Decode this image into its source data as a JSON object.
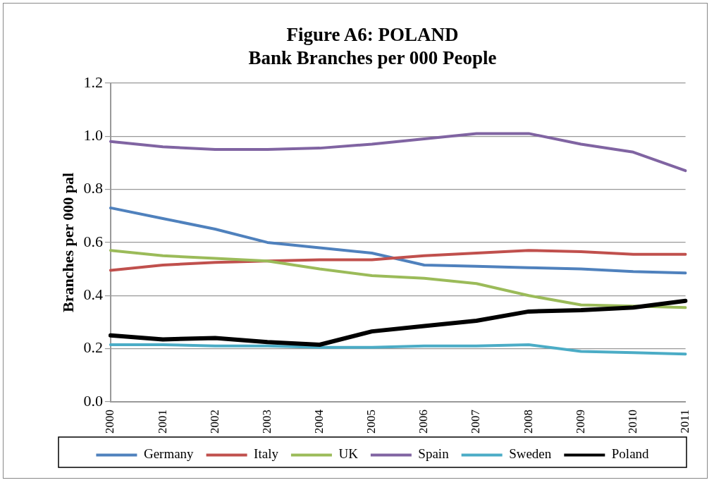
{
  "chart_data": {
    "type": "line",
    "title": "Figure A6: POLAND\nBank Branches per 000 People",
    "ylabel": "Branches per 000 pal",
    "categories": [
      "2000",
      "2001",
      "2002",
      "2003",
      "2004",
      "2005",
      "2006",
      "2007",
      "2008",
      "2009",
      "2010",
      "2011"
    ],
    "series": [
      {
        "name": "Germany",
        "color": "#4f81bd",
        "values": [
          0.73,
          0.69,
          0.65,
          0.6,
          0.58,
          0.56,
          0.515,
          0.51,
          0.505,
          0.5,
          0.49,
          0.485
        ]
      },
      {
        "name": "Italy",
        "color": "#c0504d",
        "values": [
          0.495,
          0.515,
          0.525,
          0.53,
          0.535,
          0.535,
          0.55,
          0.56,
          0.57,
          0.565,
          0.555,
          0.555
        ]
      },
      {
        "name": "UK",
        "color": "#9bbb59",
        "values": [
          0.57,
          0.55,
          0.54,
          0.53,
          0.5,
          0.475,
          0.465,
          0.445,
          0.4,
          0.365,
          0.36,
          0.355
        ]
      },
      {
        "name": "Spain",
        "color": "#8064a2",
        "values": [
          0.98,
          0.96,
          0.95,
          0.95,
          0.955,
          0.97,
          0.99,
          1.01,
          1.01,
          0.97,
          0.94,
          0.87
        ]
      },
      {
        "name": "Sweden",
        "color": "#4bacc6",
        "values": [
          0.215,
          0.215,
          0.21,
          0.21,
          0.205,
          0.205,
          0.21,
          0.21,
          0.215,
          0.19,
          0.185,
          0.18
        ]
      },
      {
        "name": "Poland",
        "color": "#000000",
        "values": [
          0.25,
          0.235,
          0.24,
          0.225,
          0.215,
          0.265,
          0.285,
          0.305,
          0.34,
          0.345,
          0.355,
          0.38
        ]
      }
    ],
    "ylim": [
      0,
      1.2
    ],
    "yticks": [
      {
        "value": 0,
        "label": "0.0"
      },
      {
        "value": 0.2,
        "label": "0.2"
      },
      {
        "value": 0.4,
        "label": "0.4"
      },
      {
        "value": 0.6,
        "label": "0.6"
      },
      {
        "value": 0.8,
        "label": "0.8"
      },
      {
        "value": 1,
        "label": "1.0"
      },
      {
        "value": 1.2,
        "label": "1.2"
      }
    ],
    "grid": "y",
    "legend": "bottom",
    "marker": "none",
    "line_style": "solid"
  }
}
